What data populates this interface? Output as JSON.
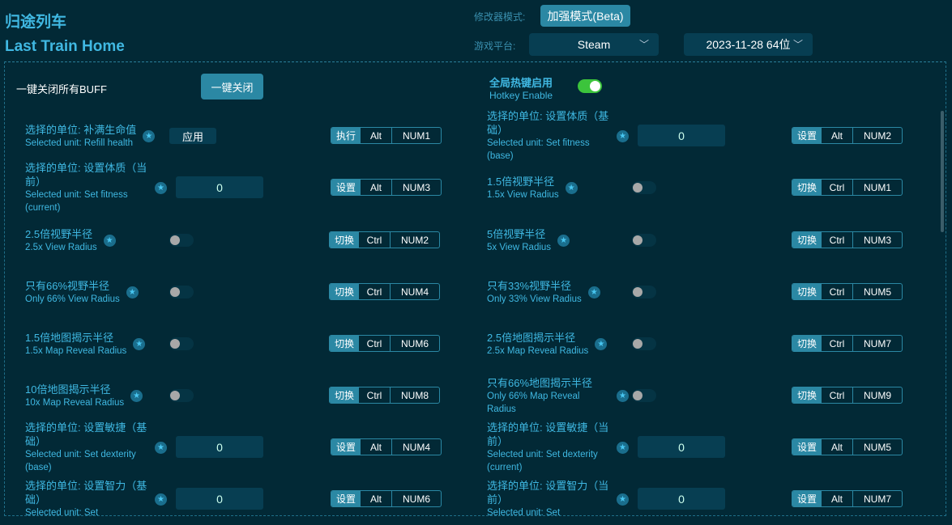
{
  "header": {
    "title_cn": "归途列车",
    "title_en": "Last Train Home",
    "mode_label": "修改器模式:",
    "mode_button": "加强模式(Beta)",
    "platform_label": "游戏平台:",
    "platform_value": "Steam",
    "version_value": "2023-11-28 64位"
  },
  "global": {
    "kill_all_label": "一键关闭所有BUFF",
    "kill_all_button": "一键关闭",
    "hotkey_cn": "全局热键启用",
    "hotkey_en": "Hotkey Enable",
    "hotkey_enabled": true
  },
  "colors": {
    "accent": "#2b88a4",
    "text": "#3fb8e2",
    "bg": "#022936",
    "toggle_on": "#3cc43c"
  },
  "items": [
    {
      "cn": "选择的单位: 补满生命值",
      "en": "Selected unit: Refill health",
      "control": "button",
      "control_label": "应用",
      "action": "执行",
      "mod": "Alt",
      "key": "NUM1"
    },
    {
      "cn": "选择的单位: 设置体质（基础）",
      "en": "Selected unit: Set fitness (base)",
      "control": "input",
      "value": "0",
      "action": "设置",
      "mod": "Alt",
      "key": "NUM2"
    },
    {
      "cn": "选择的单位: 设置体质（当前）",
      "en": "Selected unit: Set fitness (current)",
      "control": "input",
      "value": "0",
      "action": "设置",
      "mod": "Alt",
      "key": "NUM3"
    },
    {
      "cn": "1.5倍视野半径",
      "en": "1.5x View Radius",
      "control": "toggle",
      "on": false,
      "action": "切换",
      "mod": "Ctrl",
      "key": "NUM1"
    },
    {
      "cn": "2.5倍视野半径",
      "en": "2.5x View Radius",
      "control": "toggle",
      "on": false,
      "action": "切换",
      "mod": "Ctrl",
      "key": "NUM2"
    },
    {
      "cn": "5倍视野半径",
      "en": "5x View Radius",
      "control": "toggle",
      "on": false,
      "action": "切换",
      "mod": "Ctrl",
      "key": "NUM3"
    },
    {
      "cn": "只有66%视野半径",
      "en": "Only 66% View Radius",
      "control": "toggle",
      "on": false,
      "action": "切换",
      "mod": "Ctrl",
      "key": "NUM4"
    },
    {
      "cn": "只有33%视野半径",
      "en": "Only 33% View Radius",
      "control": "toggle",
      "on": false,
      "action": "切换",
      "mod": "Ctrl",
      "key": "NUM5"
    },
    {
      "cn": "1.5倍地图揭示半径",
      "en": "1.5x Map Reveal Radius",
      "control": "toggle",
      "on": false,
      "action": "切换",
      "mod": "Ctrl",
      "key": "NUM6"
    },
    {
      "cn": "2.5倍地图揭示半径",
      "en": "2.5x Map Reveal Radius",
      "control": "toggle",
      "on": false,
      "action": "切换",
      "mod": "Ctrl",
      "key": "NUM7"
    },
    {
      "cn": "10倍地图揭示半径",
      "en": "10x Map Reveal Radius",
      "control": "toggle",
      "on": false,
      "action": "切换",
      "mod": "Ctrl",
      "key": "NUM8"
    },
    {
      "cn": "只有66%地图揭示半径",
      "en": "Only 66% Map Reveal Radius",
      "control": "toggle",
      "on": false,
      "action": "切换",
      "mod": "Ctrl",
      "key": "NUM9"
    },
    {
      "cn": "选择的单位: 设置敏捷（基础）",
      "en": "Selected unit: Set dexterity (base)",
      "control": "input",
      "value": "0",
      "action": "设置",
      "mod": "Alt",
      "key": "NUM4"
    },
    {
      "cn": "选择的单位: 设置敏捷（当前）",
      "en": "Selected unit: Set dexterity (current)",
      "control": "input",
      "value": "0",
      "action": "设置",
      "mod": "Alt",
      "key": "NUM5"
    },
    {
      "cn": "选择的单位: 设置智力（基础）",
      "en": "Selected unit: Set",
      "control": "input",
      "value": "0",
      "action": "设置",
      "mod": "Alt",
      "key": "NUM6"
    },
    {
      "cn": "选择的单位: 设置智力（当前）",
      "en": "Selected unit: Set",
      "control": "input",
      "value": "0",
      "action": "设置",
      "mod": "Alt",
      "key": "NUM7"
    }
  ]
}
